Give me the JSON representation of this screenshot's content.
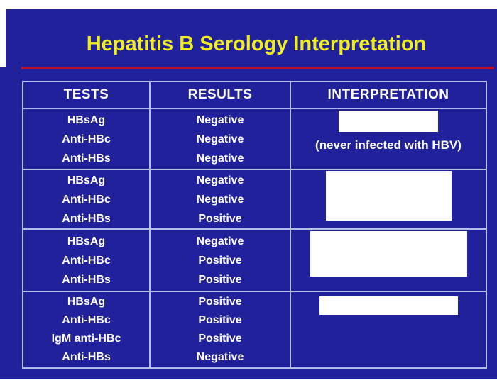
{
  "slide": {
    "title": "Hepatitis B Serology Interpretation",
    "colors": {
      "page_background": "#ffffff",
      "slide_background": "#21219b",
      "title_text": "#f1ee20",
      "title_rule": "#b5122d",
      "table_border": "#b3bfe9",
      "body_text": "#ffffff",
      "answer_box": "#ffffff"
    },
    "table": {
      "headers": [
        "TESTS",
        "RESULTS",
        "INTERPRETATION"
      ],
      "rows": [
        {
          "tests": [
            "HBsAg",
            "Anti-HBc",
            "Anti-HBs"
          ],
          "results": [
            "Negative",
            "Negative",
            "Negative"
          ],
          "interpretation": {
            "answer_hidden": true,
            "note": "(never infected with HBV)"
          }
        },
        {
          "tests": [
            "HBsAg",
            "Anti-HBc",
            "Anti-HBs"
          ],
          "results": [
            "Negative",
            "Negative",
            "Positive"
          ],
          "interpretation": {
            "answer_hidden": true,
            "note": ""
          }
        },
        {
          "tests": [
            "HBsAg",
            "Anti-HBc",
            "Anti-HBs"
          ],
          "results": [
            "Negative",
            "Positive",
            "Positive"
          ],
          "interpretation": {
            "answer_hidden": true,
            "note": ""
          }
        },
        {
          "tests": [
            "HBsAg",
            "Anti-HBc",
            "IgM anti-HBc",
            "Anti-HBs"
          ],
          "results": [
            "Positive",
            "Positive",
            "Positive",
            "Negative"
          ],
          "interpretation": {
            "answer_hidden": true,
            "note": ""
          }
        }
      ]
    }
  }
}
